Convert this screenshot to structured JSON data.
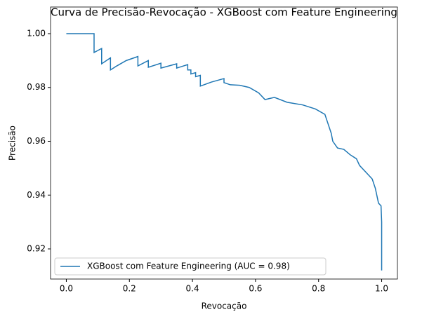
{
  "chart_data": {
    "type": "line",
    "title": "Curva de Precisão-Revocação - XGBoost com Feature Engineering",
    "xlabel": "Revocação",
    "ylabel": "Precisão",
    "x": [
      0,
      0.088,
      0.088,
      0.112,
      0.112,
      0.14,
      0.14,
      0.16,
      0.19,
      0.227,
      0.227,
      0.26,
      0.26,
      0.3,
      0.3,
      0.35,
      0.35,
      0.385,
      0.385,
      0.395,
      0.395,
      0.41,
      0.41,
      0.425,
      0.425,
      0.46,
      0.5,
      0.5,
      0.52,
      0.55,
      0.58,
      0.61,
      0.63,
      0.66,
      0.7,
      0.75,
      0.79,
      0.82,
      0.83,
      0.84,
      0.845,
      0.86,
      0.88,
      0.9,
      0.92,
      0.93,
      0.95,
      0.97,
      0.98,
      0.99,
      0.998,
      1.0,
      1.0
    ],
    "series": [
      {
        "name": "XGBoost com Feature Engineering (AUC = 0.98)",
        "color": "#1f77b4",
        "values": [
          1.0,
          1.0,
          0.993,
          0.9945,
          0.9888,
          0.991,
          0.9865,
          0.988,
          0.99,
          0.9915,
          0.988,
          0.99,
          0.9875,
          0.989,
          0.9872,
          0.9888,
          0.9872,
          0.9885,
          0.9865,
          0.9865,
          0.985,
          0.9855,
          0.984,
          0.9845,
          0.9805,
          0.982,
          0.9833,
          0.9818,
          0.981,
          0.9808,
          0.98,
          0.978,
          0.9755,
          0.9763,
          0.9745,
          0.9735,
          0.972,
          0.97,
          0.9665,
          0.963,
          0.96,
          0.9575,
          0.957,
          0.955,
          0.9535,
          0.951,
          0.9485,
          0.946,
          0.9425,
          0.937,
          0.936,
          0.93,
          0.912
        ]
      }
    ],
    "xlim": [
      -0.05,
      1.05
    ],
    "ylim": [
      0.9088,
      1.0099
    ],
    "xticks": [
      {
        "value": 0,
        "label": "0.0"
      },
      0.2,
      0.4,
      0.6,
      0.8,
      {
        "value": 1,
        "label": "1.0"
      }
    ],
    "yticks": [
      0.92,
      0.94,
      0.96,
      0.98,
      {
        "value": 1,
        "label": "1.00"
      }
    ],
    "grid": false,
    "legend": "lower left"
  }
}
